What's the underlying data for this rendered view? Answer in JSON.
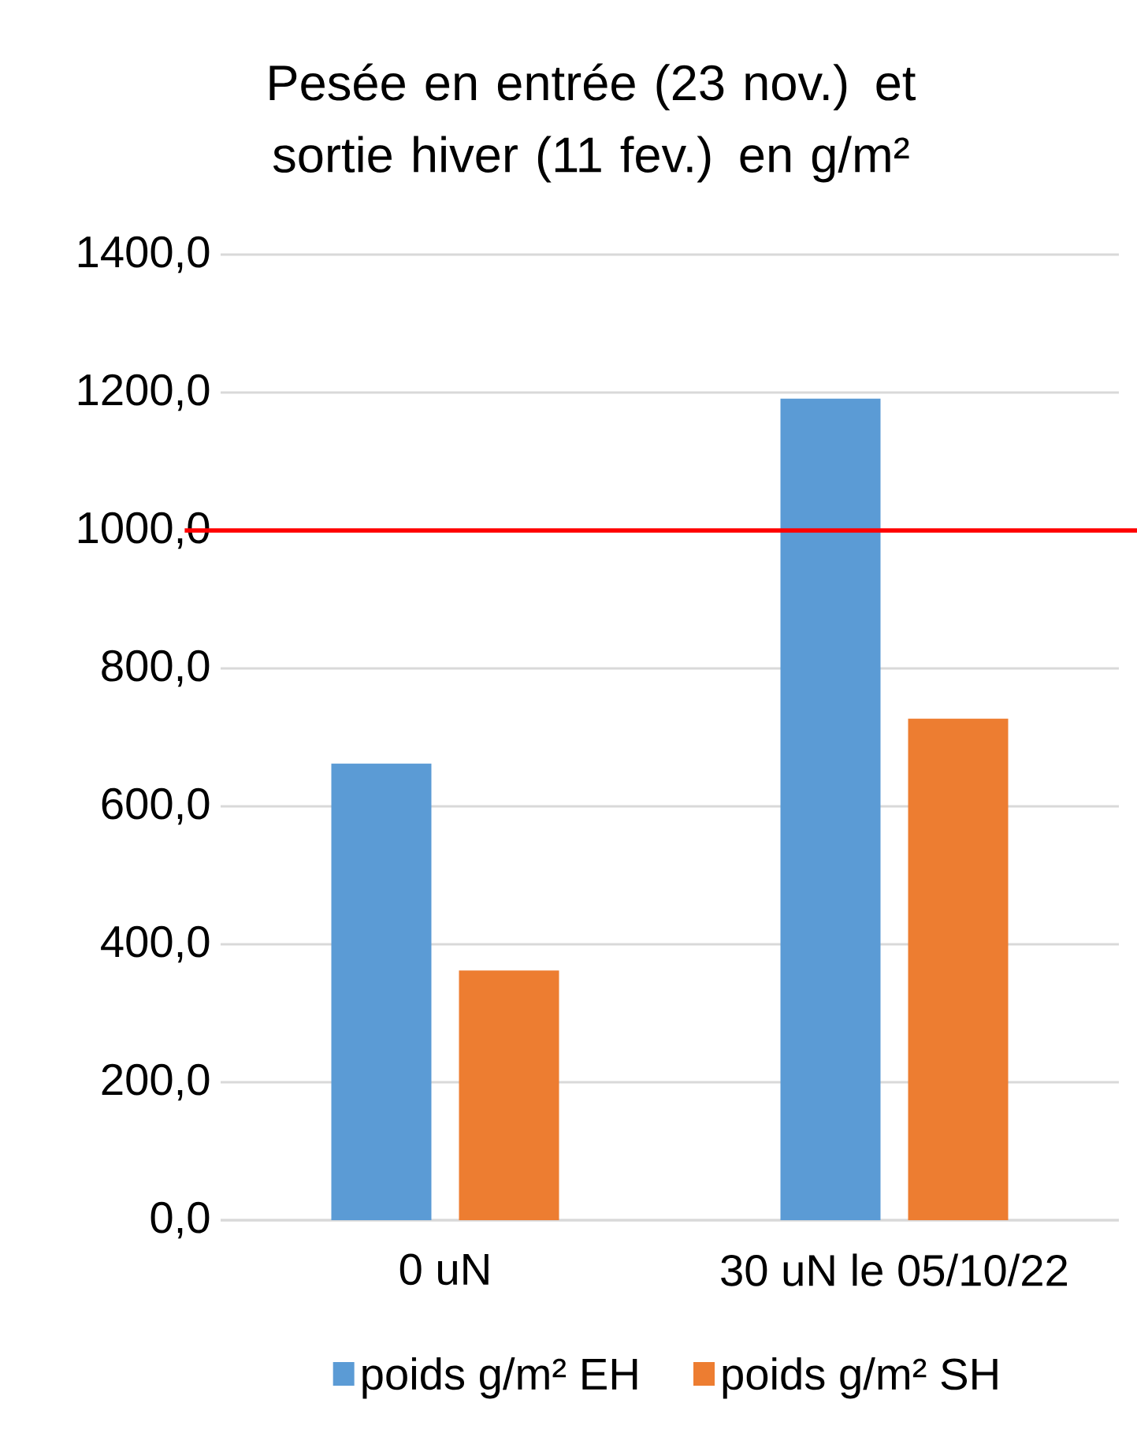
{
  "chart_data": {
    "type": "bar",
    "title": "Pesée en entrée (23 nov.) et sortie hiver (11 fev.) en g/m²",
    "categories": [
      "0 uN",
      "30 uN le 05/10/22"
    ],
    "series": [
      {
        "name": "poids g/m² EH",
        "color": "#5b9bd5",
        "values": [
          662,
          1191
        ]
      },
      {
        "name": "poids g/m² SH",
        "color": "#ed7d31",
        "values": [
          362,
          727
        ]
      }
    ],
    "ylim": [
      0,
      1400
    ],
    "yticks": [
      {
        "value": 0,
        "label": "0,0"
      },
      {
        "value": 200,
        "label": "200,0"
      },
      {
        "value": 400,
        "label": "400,0"
      },
      {
        "value": 600,
        "label": "600,0"
      },
      {
        "value": 800,
        "label": "800,0"
      },
      {
        "value": 1000,
        "label": "1000,0"
      },
      {
        "value": 1200,
        "label": "1200,0"
      },
      {
        "value": 1400,
        "label": "1400,0"
      }
    ],
    "ref_lines": [
      {
        "axis": "y",
        "value": 1000,
        "color": "#ff0000"
      }
    ],
    "grid": "y",
    "legend": "bottom"
  }
}
